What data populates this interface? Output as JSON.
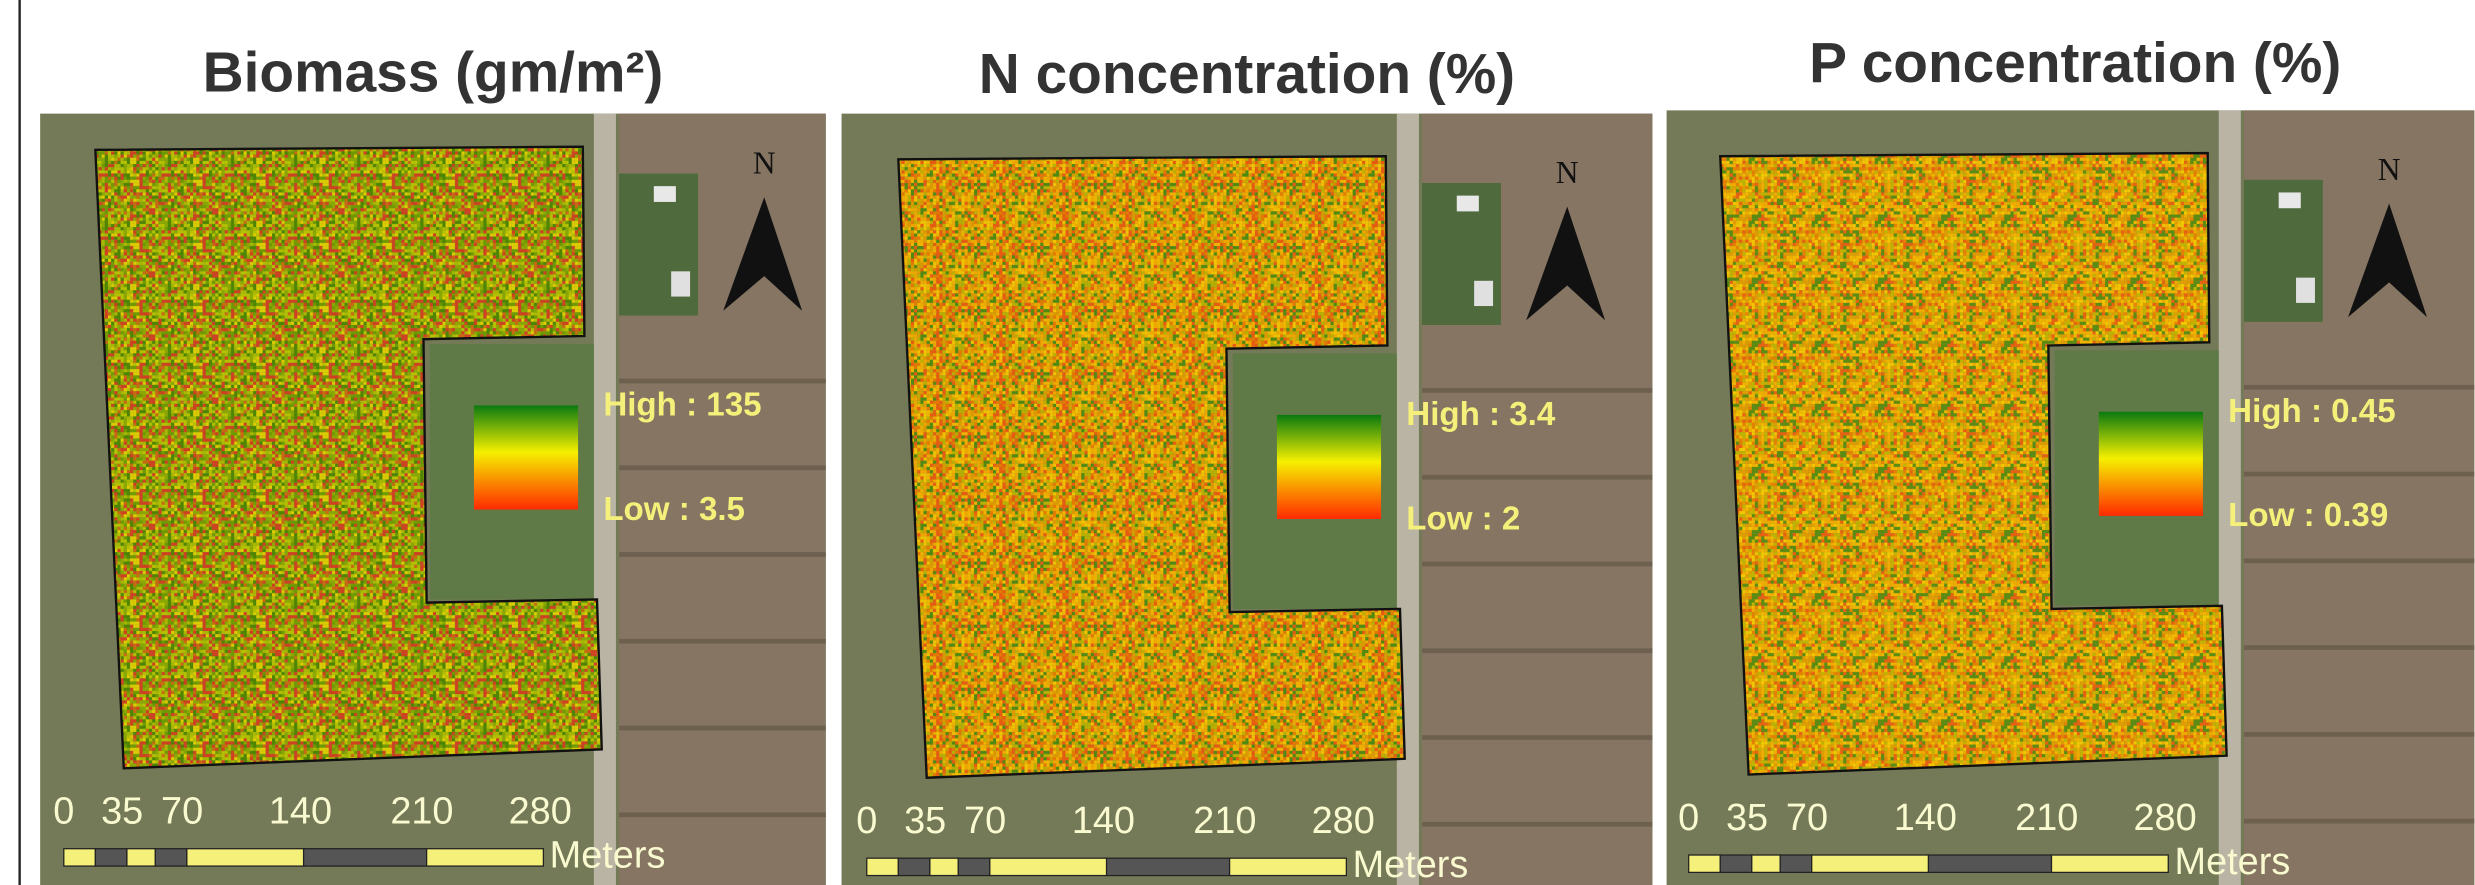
{
  "panels": [
    {
      "title": "Biomass (gm/m²)",
      "legend": {
        "high": "High : 135",
        "low": "Low : 3.5"
      },
      "north": "N",
      "scale": {
        "labels": [
          "0",
          "35",
          "70",
          "140",
          "210",
          "280"
        ],
        "unit": "Meters"
      }
    },
    {
      "title": "N concentration (%)",
      "legend": {
        "high": "High : 3.4",
        "low": "Low : 2"
      },
      "north": "N",
      "scale": {
        "labels": [
          "0",
          "35",
          "70",
          "140",
          "210",
          "280"
        ],
        "unit": "Meters"
      }
    },
    {
      "title": "P concentration (%)",
      "legend": {
        "high": "High : 0.45",
        "low": "Low : 0.39"
      },
      "north": "N",
      "scale": {
        "labels": [
          "0",
          "35",
          "70",
          "140",
          "210",
          "280"
        ],
        "unit": "Meters"
      }
    }
  ]
}
